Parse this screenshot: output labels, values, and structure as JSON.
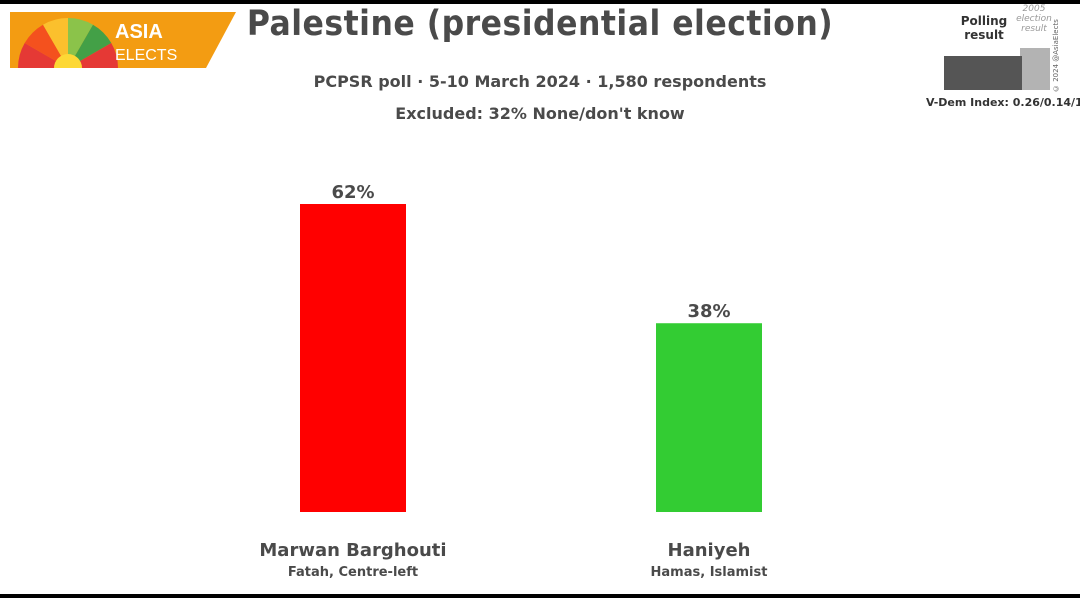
{
  "header": {
    "logo_line1": "ASIA",
    "logo_line2": "ELECTS",
    "title": "Palestine (presidential election)",
    "subtitle": "PCPSR poll · 5-10 March 2024 · 1,580 respondents",
    "excluded": "Excluded: 32% None/don't know"
  },
  "legend": {
    "polling_label": "Polling result",
    "election_label": "2005 election result",
    "vdem": "V-Dem Index: 0.26/0.14/1",
    "copyright": "© 2024 @AsiaElects",
    "polling_color": "#555555",
    "election_color": "#b3b3b3"
  },
  "chart_data": {
    "type": "bar",
    "categories": [
      "Marwan Barghouti",
      "Haniyeh"
    ],
    "subcategories": [
      "Fatah, Centre-left",
      "Hamas, Islamist"
    ],
    "values": [
      62,
      38
    ],
    "value_labels": [
      "62%",
      "38%"
    ],
    "colors": [
      "#ff0000",
      "#33cc33"
    ],
    "ylim": [
      0,
      62
    ],
    "grid": false
  }
}
